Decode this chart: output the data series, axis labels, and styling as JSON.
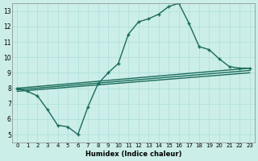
{
  "xlabel": "Humidex (Indice chaleur)",
  "bg_color": "#cceee8",
  "line_color": "#1a6b5a",
  "xlim": [
    -0.5,
    23.5
  ],
  "ylim": [
    4.5,
    13.5
  ],
  "xticks": [
    0,
    1,
    2,
    3,
    4,
    5,
    6,
    7,
    8,
    9,
    10,
    11,
    12,
    13,
    14,
    15,
    16,
    17,
    18,
    19,
    20,
    21,
    22,
    23
  ],
  "yticks": [
    5,
    6,
    7,
    8,
    9,
    10,
    11,
    12,
    13
  ],
  "grid_color": "#aadddd",
  "series": [
    {
      "x": [
        0,
        1,
        2,
        3,
        4,
        5,
        6,
        7,
        8,
        9,
        10,
        11,
        12,
        13,
        14,
        15,
        16,
        17,
        18,
        19,
        20,
        21,
        22,
        23
      ],
      "y": [
        8.0,
        7.8,
        7.5,
        6.6,
        5.6,
        5.5,
        5.0,
        6.8,
        8.3,
        9.0,
        9.6,
        11.5,
        12.3,
        12.5,
        12.8,
        13.3,
        13.5,
        12.2,
        10.7,
        10.5,
        9.9,
        9.4,
        9.3,
        9.3
      ]
    },
    {
      "x": [
        0,
        23
      ],
      "y": [
        8.0,
        9.3
      ]
    },
    {
      "x": [
        0,
        23
      ],
      "y": [
        7.9,
        9.15
      ]
    },
    {
      "x": [
        0,
        23
      ],
      "y": [
        7.8,
        9.0
      ]
    }
  ]
}
